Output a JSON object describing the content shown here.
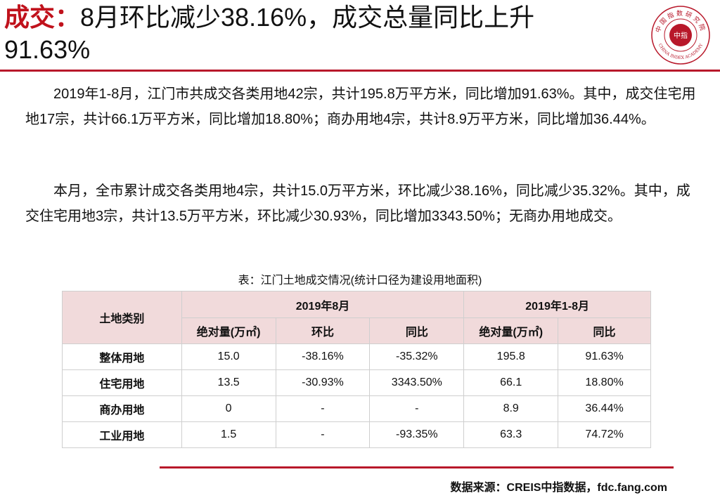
{
  "header": {
    "title_accent": "成交：",
    "title_line1": "8月环比减少38.16%，成交总量同比上升",
    "title_line2": "91.63%"
  },
  "logo": {
    "top_text": "中国指数研究院",
    "center_text": "中指",
    "bottom_text": "CHINA INDEX ACADEMY"
  },
  "paragraphs": [
    "2019年1-8月，江门市共成交各类用地42宗，共计195.8万平方米，同比增加91.63%。其中，成交住宅用地17宗，共计66.1万平方米，同比增加18.80%；商办用地4宗，共计8.9万平方米，同比增加36.44%。",
    "本月，全市累计成交各类用地4宗，共计15.0万平方米，环比减少38.16%，同比减少35.32%。其中，成交住宅用地3宗，共计13.5万平方米，环比减少30.93%，同比增加3343.50%；无商办用地成交。"
  ],
  "table": {
    "caption": "表：江门土地成交情况(统计口径为建设用地面积)",
    "corner": "土地类别",
    "group1": "2019年8月",
    "group2": "2019年1-8月",
    "subheaders": [
      "绝对量(万㎡)",
      "环比",
      "同比",
      "绝对量(万㎡)",
      "同比"
    ],
    "rows": [
      {
        "name": "整体用地",
        "cells": [
          "15.0",
          "-38.16%",
          "-35.32%",
          "195.8",
          "91.63%"
        ]
      },
      {
        "name": "住宅用地",
        "cells": [
          "13.5",
          "-30.93%",
          "3343.50%",
          "66.1",
          "18.80%"
        ]
      },
      {
        "name": "商办用地",
        "cells": [
          "0",
          "-",
          "-",
          "8.9",
          "36.44%"
        ]
      },
      {
        "name": "工业用地",
        "cells": [
          "1.5",
          "-",
          "-93.35%",
          "63.3",
          "74.72%"
        ]
      }
    ]
  },
  "footer": {
    "source": "数据来源：CREIS中指数据，fdc.fang.com"
  },
  "colors": {
    "accent": "#c0121c",
    "rule": "#b8182a",
    "table_header_bg": "#f1dadb"
  }
}
